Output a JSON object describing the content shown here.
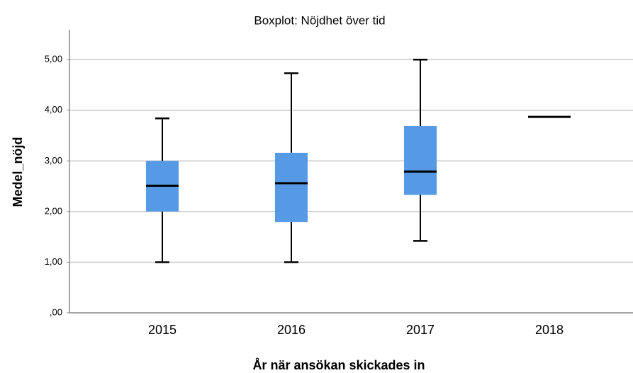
{
  "chart_data": {
    "type": "box",
    "title": "Boxplot: Nöjdhet över tid",
    "x_label": "År när ansökan skickades in",
    "y_label": "Medel_nöjd",
    "categories": [
      "2015",
      "2016",
      "2017",
      "2018"
    ],
    "min": [
      1.0,
      1.0,
      1.42,
      null
    ],
    "q1": [
      2.0,
      1.79,
      2.33,
      null
    ],
    "median": [
      2.51,
      2.56,
      2.79,
      3.87
    ],
    "q3": [
      3.0,
      3.16,
      3.69,
      null
    ],
    "max": [
      3.84,
      4.73,
      5.0,
      null
    ],
    "color": "#5699e4",
    "ylim": [
      0,
      5.59
    ],
    "yticks": [
      {
        "value": 0,
        "label": ",00"
      },
      {
        "value": 1,
        "label": "1,00"
      },
      {
        "value": 2,
        "label": "2,00"
      },
      {
        "value": 3,
        "label": "3,00"
      },
      {
        "value": 4,
        "label": "4,00"
      },
      {
        "value": 5,
        "label": "5,00"
      }
    ],
    "grid": true
  }
}
